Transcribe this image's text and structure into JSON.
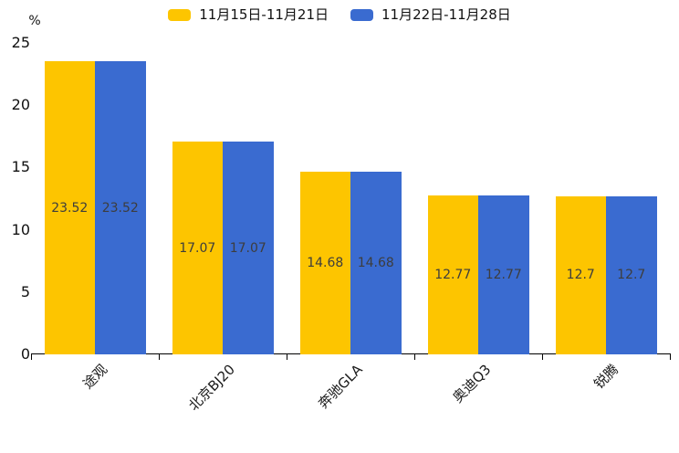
{
  "chart_data": {
    "type": "bar",
    "title": "",
    "categories": [
      "途观",
      "北京BJ20",
      "奔驰GLA",
      "奥迪Q3",
      "锐腾"
    ],
    "series": [
      {
        "name": "11月15日-11月21日",
        "color": "#FDC500",
        "values": [
          23.52,
          17.07,
          14.68,
          12.77,
          12.7
        ]
      },
      {
        "name": "11月22日-11月28日",
        "color": "#3A6BD0",
        "values": [
          23.52,
          17.07,
          14.68,
          12.77,
          12.7
        ]
      }
    ],
    "xlabel": "",
    "ylabel": "%",
    "ylim": [
      0,
      25
    ],
    "y_ticks": [
      0,
      5,
      10,
      15,
      20,
      25
    ],
    "grid": false,
    "legend_position": "top-center",
    "value_labels": "inside-center",
    "x_label_rotation": 45,
    "colors": {
      "axis_line": "#000000",
      "axis_text": "#111111",
      "value_label_text": "#3d3d3d"
    }
  }
}
